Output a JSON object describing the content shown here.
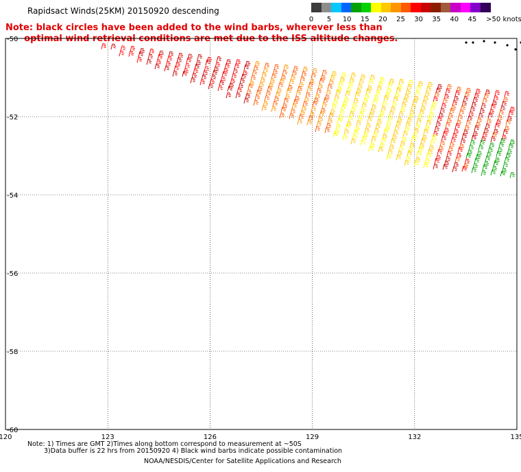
{
  "title": "Rapidsact Winds(25KM) 20150920 descending",
  "note": {
    "line1": "Note: black circles have been added to the wind barbs, wherever less than",
    "line2": "optimal wind retrieval conditions are met due to the ISS altitude changes."
  },
  "legend": {
    "labels": [
      "0",
      "5",
      "10",
      "15",
      "20",
      "25",
      "30",
      "35",
      "40",
      "45",
      ">50 knots"
    ],
    "colors": [
      "#3c3c3c",
      "#8c8c8c",
      "#00c8ff",
      "#0064ff",
      "#00a000",
      "#00d200",
      "#ffff00",
      "#ffc800",
      "#ff9600",
      "#ff5a00",
      "#ff0000",
      "#c80000",
      "#8c1e00",
      "#a05a3c",
      "#c800c8",
      "#ff00ff",
      "#8200c8",
      "#32005a"
    ]
  },
  "axes": {
    "lon_labels": [
      "120",
      "123",
      "126",
      "129",
      "132",
      "135"
    ],
    "lat_labels": [
      "-50",
      "-52",
      "-54",
      "-56",
      "-58",
      "-60"
    ]
  },
  "footer": {
    "line1": "Note: 1) Times are GMT 2)Times along bottom correspond to measurement at ~50S",
    "line2": "3)Data buffer is 22 hrs from 20150920 4) Black wind barbs indicate possible contamination",
    "line3": "NOAA/NESDIS/Center for Satellite Applications and Research"
  }
}
